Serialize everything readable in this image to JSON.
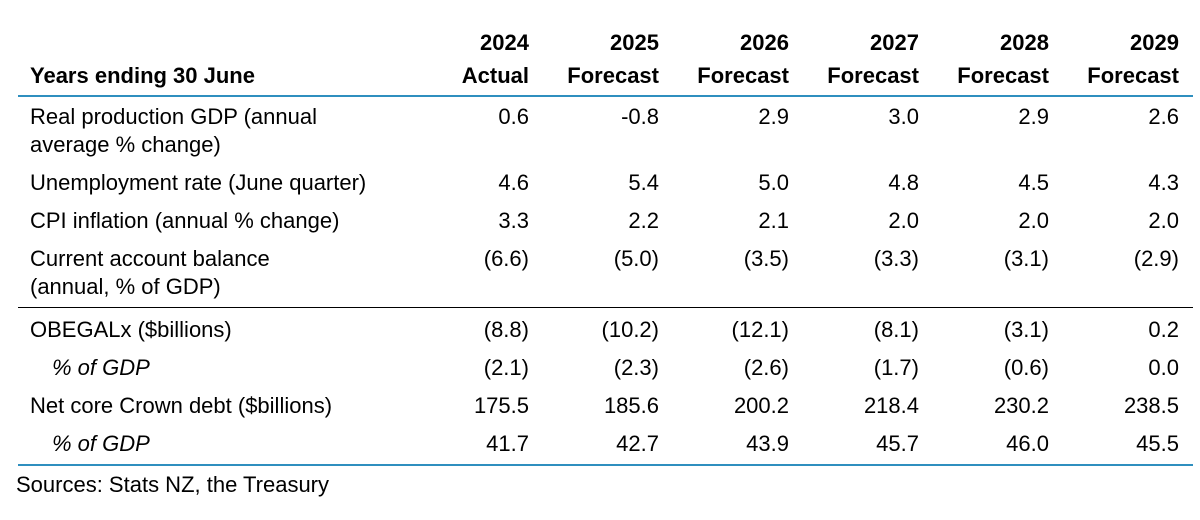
{
  "table": {
    "header_label": "Years ending 30 June",
    "columns": [
      {
        "year": "2024",
        "type": "Actual"
      },
      {
        "year": "2025",
        "type": "Forecast"
      },
      {
        "year": "2026",
        "type": "Forecast"
      },
      {
        "year": "2027",
        "type": "Forecast"
      },
      {
        "year": "2028",
        "type": "Forecast"
      },
      {
        "year": "2029",
        "type": "Forecast"
      }
    ],
    "rows": [
      {
        "label_line1": "Real production GDP (annual",
        "label_line2": "average % change)",
        "values": [
          "0.6",
          "-0.8",
          "2.9",
          "3.0",
          "2.9",
          "2.6"
        ]
      },
      {
        "label_line1": "Unemployment rate (June quarter)",
        "values": [
          "4.6",
          "5.4",
          "5.0",
          "4.8",
          "4.5",
          "4.3"
        ]
      },
      {
        "label_line1": "CPI inflation (annual % change)",
        "values": [
          "3.3",
          "2.2",
          "2.1",
          "2.0",
          "2.0",
          "2.0"
        ]
      },
      {
        "label_line1": "Current account balance",
        "label_line2": "(annual, % of GDP)",
        "values": [
          "(6.6)",
          "(5.0)",
          "(3.5)",
          "(3.3)",
          "(3.1)",
          "(2.9)"
        ]
      },
      {
        "label_line1": "OBEGALx ($billions)",
        "values": [
          "(8.8)",
          "(10.2)",
          "(12.1)",
          "(8.1)",
          "(3.1)",
          "0.2"
        ]
      },
      {
        "label_line1": "% of GDP",
        "values": [
          "(2.1)",
          "(2.3)",
          "(2.6)",
          "(1.7)",
          "(0.6)",
          "0.0"
        ]
      },
      {
        "label_line1": "Net core Crown debt ($billions)",
        "values": [
          "175.5",
          "185.6",
          "200.2",
          "218.4",
          "230.2",
          "238.5"
        ]
      },
      {
        "label_line1": "% of GDP",
        "values": [
          "41.7",
          "42.7",
          "43.9",
          "45.7",
          "46.0",
          "45.5"
        ]
      }
    ]
  },
  "source": "Sources: Stats NZ, the Treasury",
  "colors": {
    "rule_accent": "#2f8fbf",
    "rule_section": "#000000"
  }
}
